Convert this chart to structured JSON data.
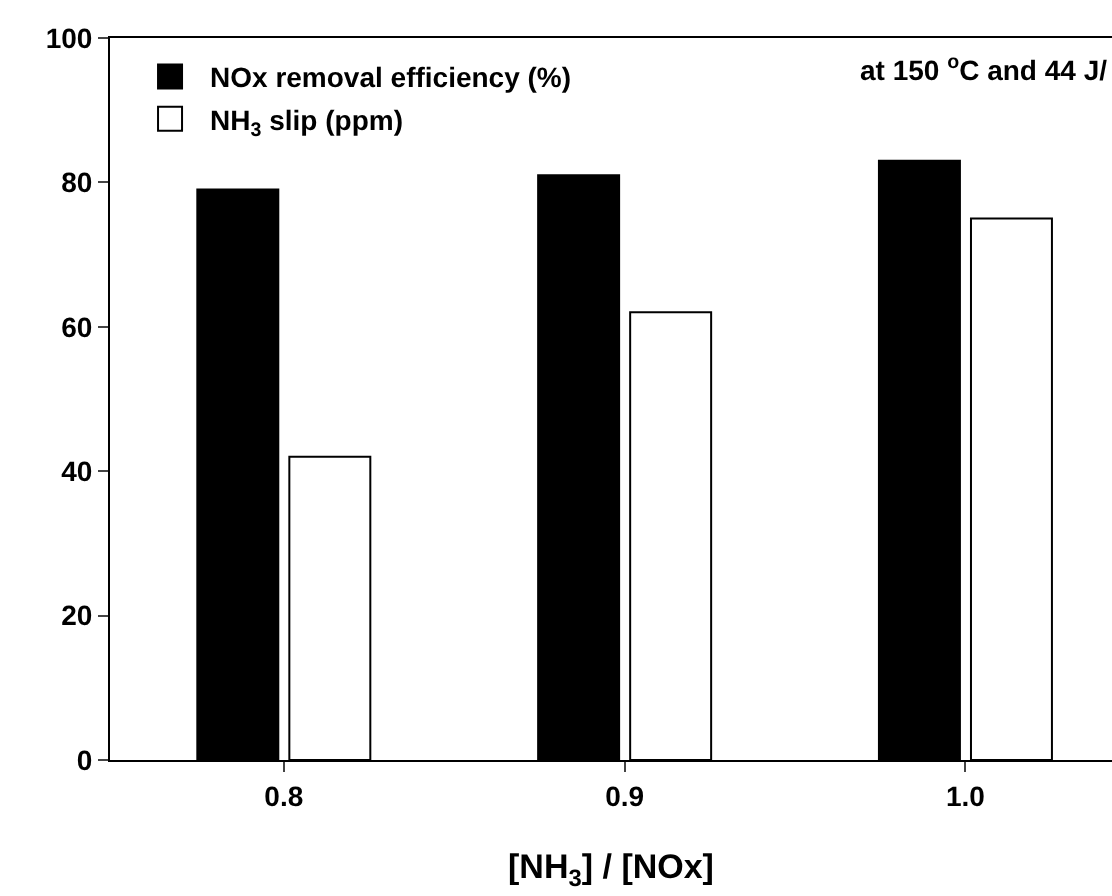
{
  "chart_data": {
    "type": "bar",
    "xlabel": "[NH$_{3}$] / [NOx]",
    "categories": [
      "0.8",
      "0.9",
      "1.0"
    ],
    "series": [
      {
        "name": "NOx removal efficiency (%)",
        "color": "#000000",
        "values": [
          79,
          81,
          83
        ]
      },
      {
        "name": "NH$_{3}$ slip (ppm)",
        "color": "#ffffff",
        "values": [
          42,
          62,
          75
        ]
      }
    ],
    "ylim": [
      0,
      100
    ],
    "yticks": [
      0,
      20,
      40,
      60,
      80,
      100
    ],
    "legend": "top left",
    "annotations": [
      "at 150 $^{o}$C and 44 J/"
    ]
  }
}
